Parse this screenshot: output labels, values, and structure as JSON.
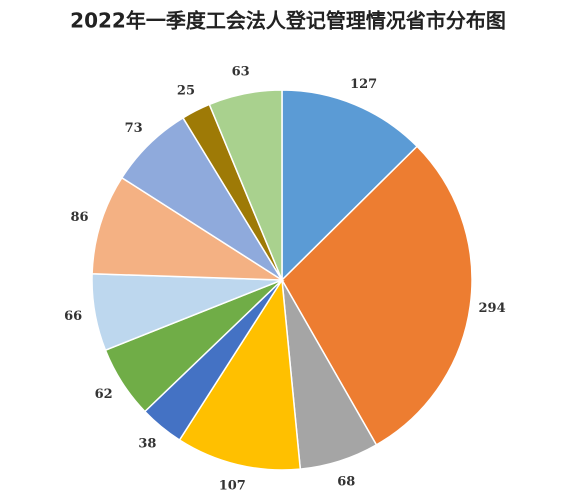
{
  "chart_data": {
    "type": "pie",
    "title": "2022年一季度工会法人登记管理情况省市分布图",
    "values": [
      127,
      294,
      68,
      107,
      38,
      62,
      66,
      86,
      73,
      25,
      63
    ],
    "colors": [
      "#5b9bd5",
      "#ed7d31",
      "#a5a5a5",
      "#ffc000",
      "#4472c4",
      "#70ad47",
      "#bdd7ee",
      "#f4b183",
      "#8faadc",
      "#9e7a06",
      "#a9d18e"
    ]
  }
}
